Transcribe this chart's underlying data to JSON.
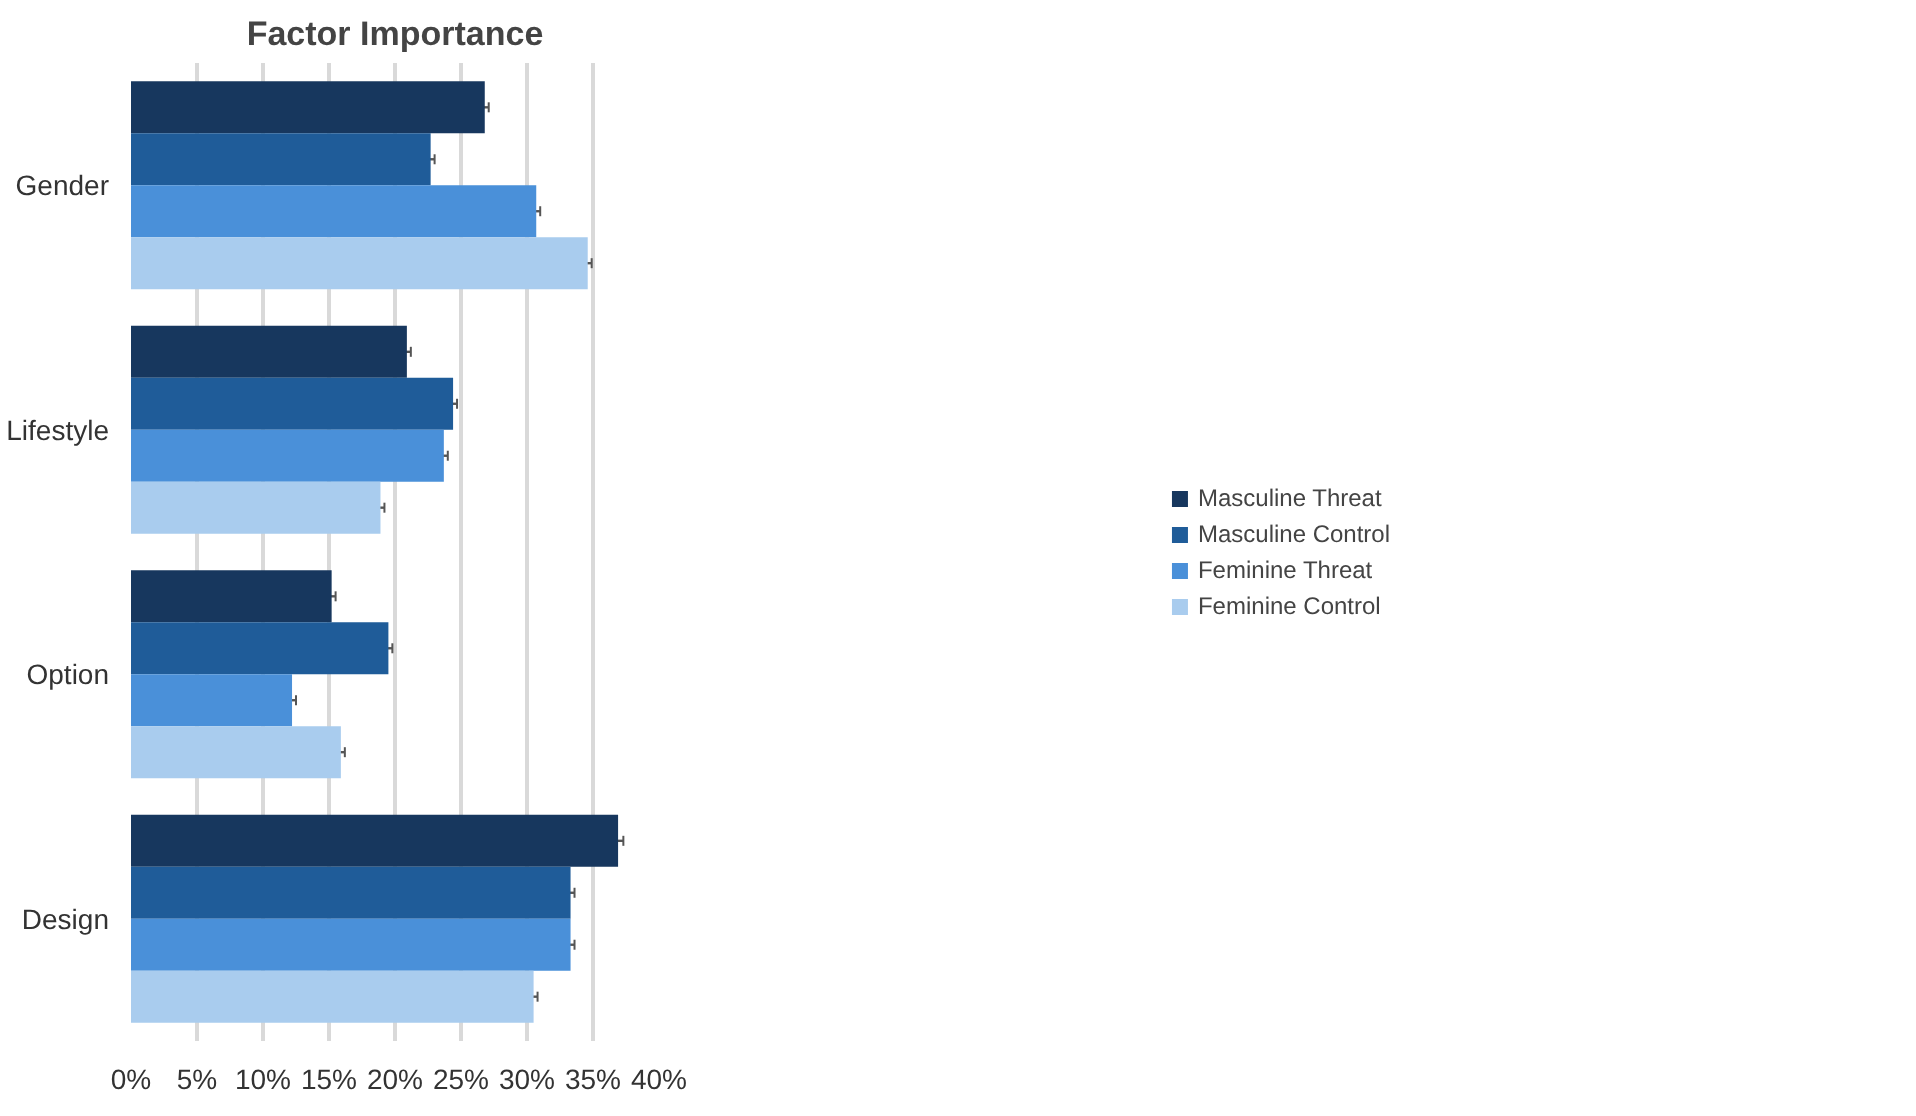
{
  "chart_data": {
    "type": "bar",
    "orientation": "horizontal",
    "title": "Factor Importance",
    "categories": [
      "Gender",
      "Lifestyle",
      "Option",
      "Design"
    ],
    "series": [
      {
        "name": "Masculine Threat",
        "color": "#17375e",
        "values": [
          26.8,
          20.9,
          15.2,
          36.9
        ],
        "errors": [
          0.3,
          0.3,
          0.3,
          0.4
        ]
      },
      {
        "name": "Masculine Control",
        "color": "#1f5c99",
        "values": [
          22.7,
          24.4,
          19.5,
          33.3
        ],
        "errors": [
          0.3,
          0.3,
          0.3,
          0.3
        ]
      },
      {
        "name": "Feminine Threat",
        "color": "#4a90d9",
        "values": [
          30.7,
          23.7,
          12.2,
          33.3
        ],
        "errors": [
          0.3,
          0.3,
          0.3,
          0.3
        ]
      },
      {
        "name": "Feminine Control",
        "color": "#a9ccee",
        "values": [
          34.6,
          18.9,
          15.9,
          30.5
        ],
        "errors": [
          0.3,
          0.3,
          0.3,
          0.3
        ]
      }
    ],
    "xlim": [
      0,
      40
    ],
    "xticks": [
      {
        "value": 0,
        "label": "0%"
      },
      {
        "value": 5,
        "label": "5%"
      },
      {
        "value": 10,
        "label": "10%"
      },
      {
        "value": 15,
        "label": "15%"
      },
      {
        "value": 20,
        "label": "20%"
      },
      {
        "value": 25,
        "label": "25%"
      },
      {
        "value": 30,
        "label": "30%"
      },
      {
        "value": 35,
        "label": "35%"
      },
      {
        "value": 40,
        "label": "40%"
      }
    ],
    "grid": "x",
    "legend": "right"
  }
}
